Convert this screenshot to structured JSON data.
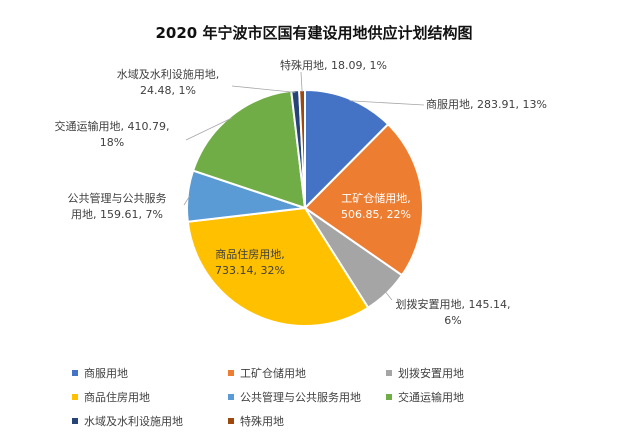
{
  "chart_data": {
    "type": "pie",
    "title": "2020 年宁波市区国有建设用地供应计划结构图",
    "unit_note": "",
    "slices": [
      {
        "name": "商服用地",
        "value": 283.91,
        "percent": "13%",
        "color": "#4472C4",
        "label_line1": "商服用地, 283.91, 13%",
        "label_line2": ""
      },
      {
        "name": "工矿仓储用地",
        "value": 506.85,
        "percent": "22%",
        "color": "#ED7D31",
        "label_line1": "工矿仓储用地,",
        "label_line2": "506.85, 22%"
      },
      {
        "name": "划拨安置用地",
        "value": 145.14,
        "percent": "6%",
        "color": "#A5A5A5",
        "label_line1": "划拨安置用地, 145.14,",
        "label_line2": "6%"
      },
      {
        "name": "商品住房用地",
        "value": 733.14,
        "percent": "32%",
        "color": "#FFC000",
        "label_line1": "商品住房用地,",
        "label_line2": "733.14, 32%"
      },
      {
        "name": "公共管理与公共服务用地",
        "value": 159.61,
        "percent": "7%",
        "color": "#5B9BD5",
        "label_line1": "公共管理与公共服务",
        "label_line2": "用地, 159.61, 7%"
      },
      {
        "name": "交通运输用地",
        "value": 410.79,
        "percent": "18%",
        "color": "#70AD47",
        "label_line1": "交通运输用地, 410.79,",
        "label_line2": "18%"
      },
      {
        "name": "水域及水利设施用地",
        "value": 24.48,
        "percent": "1%",
        "color": "#264478",
        "label_line1": "水域及水利设施用地,",
        "label_line2": "24.48, 1%"
      },
      {
        "name": "特殊用地",
        "value": 18.09,
        "percent": "1%",
        "color": "#9E480E",
        "label_line1": "特殊用地, 18.09, 1%",
        "label_line2": ""
      }
    ],
    "legend": [
      "商服用地",
      "工矿仓储用地",
      "划拨安置用地",
      "商品住房用地",
      "公共管理与公共服务用地",
      "交通运输用地",
      "水域及水利设施用地",
      "特殊用地"
    ],
    "legend_position": "bottom"
  }
}
